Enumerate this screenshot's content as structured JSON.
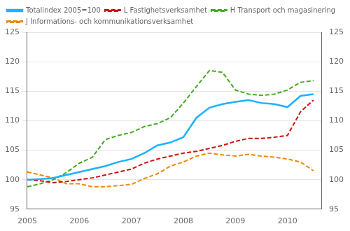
{
  "chart_data": {
    "type": "line",
    "x": [
      2005.0,
      2005.25,
      2005.5,
      2005.75,
      2006.0,
      2006.25,
      2006.5,
      2006.75,
      2007.0,
      2007.25,
      2007.5,
      2007.75,
      2008.0,
      2008.25,
      2008.5,
      2008.75,
      2009.0,
      2009.25,
      2009.5,
      2009.75,
      2010.0,
      2010.25,
      2010.5
    ],
    "series": [
      {
        "name": "Totalindex 2005=100",
        "color": "#1ab2ff",
        "line_style": "solid",
        "values": [
          100.0,
          100.1,
          100.3,
          100.8,
          101.3,
          101.8,
          102.3,
          103.0,
          103.5,
          104.5,
          105.8,
          106.3,
          107.2,
          110.5,
          112.2,
          112.8,
          113.2,
          113.5,
          113.0,
          112.8,
          112.3,
          114.2,
          114.5
        ]
      },
      {
        "name": "L Fastighetsverksamhet",
        "color": "#cc1111",
        "line_style": "dashed",
        "values": [
          100.0,
          99.8,
          99.5,
          99.7,
          100.0,
          100.3,
          100.8,
          101.3,
          101.8,
          102.8,
          103.5,
          104.0,
          104.5,
          104.8,
          105.3,
          105.8,
          106.5,
          107.0,
          107.0,
          107.2,
          107.5,
          111.5,
          113.5
        ]
      },
      {
        "name": "H Transport och magasinering",
        "color": "#44aa22",
        "line_style": "dashed",
        "values": [
          98.8,
          99.3,
          100.0,
          101.2,
          102.8,
          103.8,
          106.8,
          107.5,
          108.0,
          109.0,
          109.5,
          110.5,
          113.0,
          115.8,
          118.5,
          118.2,
          115.2,
          114.5,
          114.3,
          114.5,
          115.2,
          116.5,
          116.8
        ]
      },
      {
        "name": "J Informations- och kommunikationsverksamhet",
        "color": "#ee8800",
        "line_style": "dashed",
        "values": [
          101.3,
          100.8,
          100.3,
          99.3,
          99.3,
          98.8,
          98.8,
          99.0,
          99.2,
          100.2,
          101.0,
          102.3,
          103.0,
          104.0,
          104.5,
          104.2,
          104.0,
          104.3,
          104.0,
          103.8,
          103.5,
          103.0,
          101.5
        ]
      }
    ],
    "xlim": [
      2005,
      2010.65
    ],
    "xticks": [
      2005,
      2006,
      2007,
      2008,
      2009,
      2010
    ],
    "ylim": [
      95,
      125
    ],
    "yticks": [
      95,
      100,
      105,
      110,
      115,
      120,
      125
    ],
    "y2lim": [
      95,
      125
    ],
    "y2ticks": [
      95,
      100,
      105,
      110,
      115,
      120,
      125
    ],
    "grid": "y",
    "legend": "upper left"
  }
}
